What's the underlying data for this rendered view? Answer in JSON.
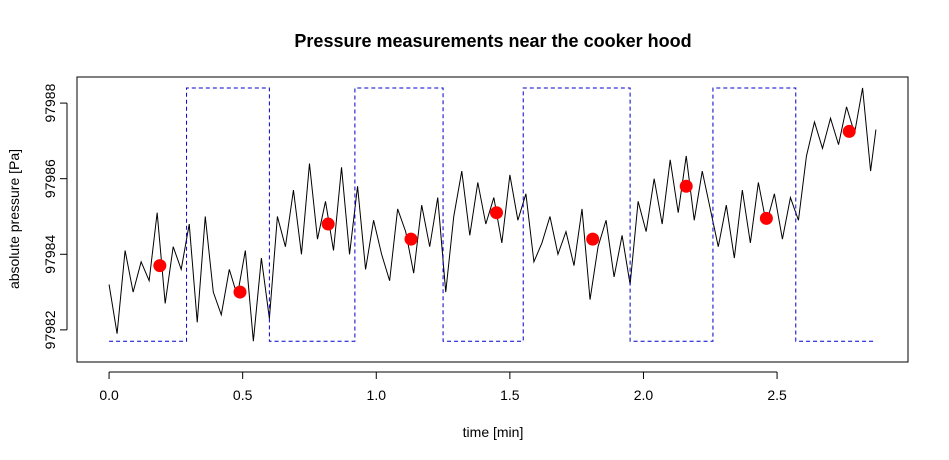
{
  "chart_data": {
    "type": "line",
    "title": "Pressure measurements near the cooker hood",
    "xlabel": "time [min]",
    "ylabel": "absolute pressure [Pa]",
    "xlim": [
      -0.12,
      2.99
    ],
    "ylim": [
      97981.15,
      97988.69
    ],
    "xticks": [
      {
        "value": 0,
        "label": "0.0"
      },
      0.5,
      {
        "value": 1,
        "label": "1.0"
      },
      1.5,
      {
        "value": 2,
        "label": "2.0"
      },
      2.5
    ],
    "yticks": [
      97982,
      97984,
      97986,
      97988
    ],
    "series": [
      {
        "color": "#000000",
        "linestyle": "solid",
        "marker": "none",
        "x": [
          0,
          0.03,
          0.06,
          0.09,
          0.12,
          0.15,
          0.18,
          0.21,
          0.24,
          0.27,
          0.3,
          0.33,
          0.36,
          0.39,
          0.42,
          0.45,
          0.48,
          0.51,
          0.54,
          0.57,
          0.6,
          0.63,
          0.66,
          0.69,
          0.72,
          0.75,
          0.78,
          0.81,
          0.84,
          0.87,
          0.9,
          0.93,
          0.96,
          0.99,
          1.02,
          1.05,
          1.08,
          1.11,
          1.14,
          1.17,
          1.2,
          1.23,
          1.26,
          1.29,
          1.32,
          1.35,
          1.38,
          1.41,
          1.44,
          1.47,
          1.5,
          1.53,
          1.56,
          1.59,
          1.62,
          1.65,
          1.68,
          1.71,
          1.74,
          1.77,
          1.8,
          1.83,
          1.86,
          1.89,
          1.92,
          1.95,
          1.98,
          2.01,
          2.04,
          2.07,
          2.1,
          2.13,
          2.16,
          2.19,
          2.22,
          2.25,
          2.28,
          2.31,
          2.34,
          2.37,
          2.4,
          2.43,
          2.46,
          2.49,
          2.52,
          2.55,
          2.58,
          2.61,
          2.64,
          2.67,
          2.7,
          2.73,
          2.76,
          2.79,
          2.82,
          2.85,
          2.87
        ],
        "values": [
          97983.2,
          97981.9,
          97984.1,
          97983.0,
          97983.8,
          97983.3,
          97985.1,
          97982.7,
          97984.2,
          97983.6,
          97984.8,
          97982.2,
          97985.0,
          97983.0,
          97982.4,
          97983.6,
          97982.9,
          97984.1,
          97981.7,
          97983.9,
          97982.3,
          97985.0,
          97984.2,
          97985.7,
          97984.0,
          97986.4,
          97984.4,
          97985.4,
          97984.1,
          97986.3,
          97984.0,
          97985.8,
          97983.6,
          97984.9,
          97984.0,
          97983.3,
          97985.2,
          97984.6,
          97983.5,
          97985.3,
          97984.2,
          97985.5,
          97983.0,
          97985.0,
          97986.2,
          97984.5,
          97985.9,
          97984.8,
          97985.5,
          97984.3,
          97986.1,
          97984.9,
          97985.6,
          97983.8,
          97984.3,
          97985.0,
          97984.0,
          97984.6,
          97983.7,
          97985.2,
          97982.8,
          97984.2,
          97984.9,
          97983.4,
          97984.5,
          97983.2,
          97985.4,
          97984.6,
          97986.0,
          97984.8,
          97986.5,
          97985.1,
          97986.6,
          97984.9,
          97986.2,
          97985.2,
          97984.2,
          97985.3,
          97983.9,
          97985.7,
          97984.3,
          97985.9,
          97984.8,
          97985.6,
          97984.4,
          97985.5,
          97984.9,
          97986.6,
          97987.5,
          97986.8,
          97987.6,
          97986.9,
          97987.9,
          97987.2,
          97988.4,
          97986.2,
          97987.3
        ]
      },
      {
        "color": "#0000cd",
        "linestyle": "dashed",
        "marker": "none",
        "x": [
          0,
          0.29,
          0.29,
          0.6,
          0.6,
          0.92,
          0.92,
          1.25,
          1.25,
          1.55,
          1.55,
          1.95,
          1.95,
          2.26,
          2.26,
          2.57,
          2.57,
          2.87
        ],
        "values": [
          97981.7,
          97981.7,
          97988.4,
          97988.4,
          97981.7,
          97981.7,
          97988.4,
          97988.4,
          97981.7,
          97981.7,
          97988.4,
          97988.4,
          97981.7,
          97981.7,
          97988.4,
          97988.4,
          97981.7,
          97981.7
        ]
      },
      {
        "color": "#ff0000",
        "linestyle": "none",
        "marker": "point",
        "x": [
          0.19,
          0.49,
          0.82,
          1.13,
          1.45,
          1.81,
          2.16,
          2.46,
          2.77
        ],
        "values": [
          97983.7,
          97983.0,
          97984.8,
          97984.4,
          97985.1,
          97984.4,
          97985.8,
          97984.95,
          97987.25
        ]
      }
    ]
  }
}
